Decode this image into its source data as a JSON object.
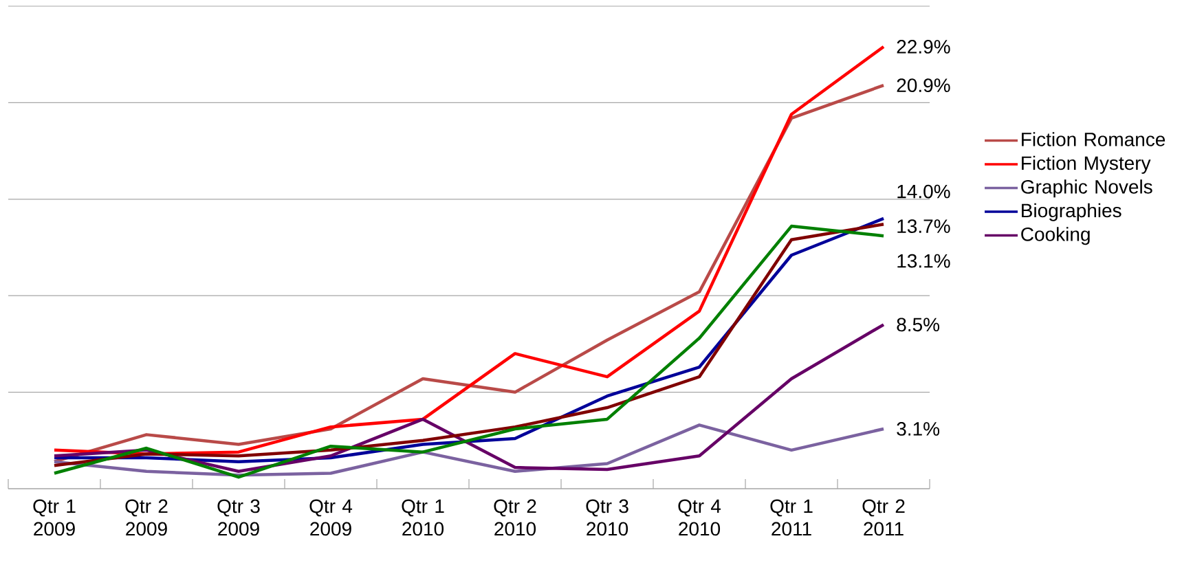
{
  "chart_data": {
    "type": "line",
    "categories": [
      "Qtr 1 2009",
      "Qtr 2 2009",
      "Qtr 3 2009",
      "Qtr 4 2009",
      "Qtr 1 2010",
      "Qtr 2 2010",
      "Qtr 3 2010",
      "Qtr 4 2010",
      "Qtr 1 2011",
      "Qtr 2 2011"
    ],
    "series": [
      {
        "name": "Fiction Romance",
        "color": "#b94a48",
        "values": [
          1.4,
          2.8,
          2.3,
          3.1,
          5.7,
          5.0,
          7.7,
          10.2,
          19.2,
          20.9
        ],
        "value_labels": [
          null,
          null,
          null,
          null,
          null,
          null,
          null,
          null,
          null,
          "20.9%"
        ]
      },
      {
        "name": "Fiction Mystery",
        "color": "#ff0000",
        "values": [
          2.0,
          1.8,
          1.9,
          3.2,
          3.6,
          7.0,
          5.8,
          9.2,
          19.4,
          22.9
        ],
        "value_labels": [
          null,
          null,
          null,
          null,
          null,
          null,
          null,
          null,
          null,
          "22.9%"
        ]
      },
      {
        "name": "Graphic Novels",
        "color": "#7b62a0",
        "values": [
          1.4,
          0.9,
          0.7,
          0.8,
          1.9,
          0.9,
          1.3,
          3.3,
          2.0,
          3.1
        ],
        "value_labels": [
          null,
          null,
          null,
          null,
          null,
          null,
          null,
          null,
          null,
          "3.1%"
        ]
      },
      {
        "name": "Biographies",
        "color": "#000099",
        "values": [
          1.6,
          1.6,
          1.4,
          1.6,
          2.3,
          2.6,
          4.8,
          6.3,
          12.1,
          14.0
        ],
        "value_labels": [
          null,
          null,
          null,
          null,
          null,
          null,
          null,
          null,
          null,
          "14.0%"
        ]
      },
      {
        "name": "Cooking",
        "color": "#660066",
        "values": [
          1.7,
          2.0,
          0.9,
          1.7,
          3.6,
          1.1,
          1.0,
          1.7,
          5.7,
          8.5
        ],
        "value_labels": [
          null,
          null,
          null,
          null,
          null,
          null,
          null,
          null,
          null,
          "8.5%"
        ]
      },
      {
        "color": "#800000",
        "values": [
          1.2,
          1.8,
          1.7,
          2.0,
          2.5,
          3.2,
          4.2,
          5.8,
          12.9,
          13.7
        ],
        "value_labels": [
          null,
          null,
          null,
          null,
          null,
          null,
          null,
          null,
          null,
          "13.7%"
        ]
      },
      {
        "color": "#008000",
        "values": [
          0.8,
          2.1,
          0.6,
          2.2,
          1.9,
          3.1,
          3.6,
          7.8,
          13.6,
          13.1
        ],
        "value_labels": [
          null,
          null,
          null,
          null,
          null,
          null,
          null,
          null,
          null,
          "13.1%"
        ]
      }
    ],
    "ylim": [
      0,
      25
    ],
    "yticks": [
      {
        "value": 0,
        "label": null
      },
      {
        "value": 5,
        "label": null
      },
      {
        "value": 10,
        "label": null
      },
      {
        "value": 15,
        "label": null
      },
      {
        "value": 20,
        "label": null
      },
      {
        "value": 25,
        "label": null
      }
    ],
    "grid": "y",
    "legend": "right"
  }
}
